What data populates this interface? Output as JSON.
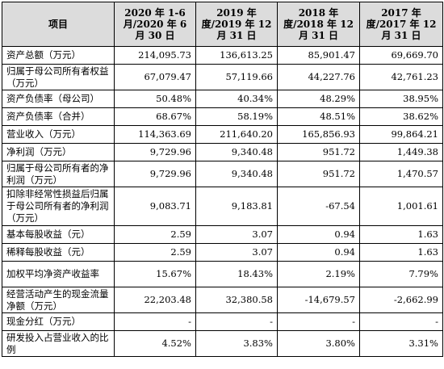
{
  "table": {
    "headers": [
      "项目",
      "2020 年 1-6 月/2020 年 6 月 30 日",
      "2019 年度/2019 年 12 月 31 日",
      "2018 年度/2018 年 12 月 31 日",
      "2017 年度/2017 年 12 月 31 日"
    ],
    "rows": [
      {
        "label": "资产总额（万元）",
        "values": [
          "214,095.73",
          "136,613.25",
          "85,901.47",
          "69,669.70"
        ]
      },
      {
        "label": "归属于母公司所有者权益（万元）",
        "values": [
          "67,079.47",
          "57,119.66",
          "44,227.76",
          "42,761.23"
        ]
      },
      {
        "label": "资产负债率（母公司）",
        "values": [
          "50.48%",
          "40.34%",
          "48.29%",
          "38.95%"
        ]
      },
      {
        "label": "资产负债率（合并）",
        "values": [
          "68.67%",
          "58.19%",
          "48.51%",
          "38.62%"
        ]
      },
      {
        "label": "营业收入（万元）",
        "values": [
          "114,363.69",
          "211,640.20",
          "165,856.93",
          "99,864.21"
        ]
      },
      {
        "label": "净利润（万元）",
        "values": [
          "9,729.96",
          "9,340.48",
          "951.72",
          "1,449.38"
        ]
      },
      {
        "label": "归属于母公司所有者的净利润（万元）",
        "values": [
          "9,729.96",
          "9,340.48",
          "951.72",
          "1,470.57"
        ]
      },
      {
        "label": "扣除非经常性损益后归属于母公司所有者的净利润（万元）",
        "values": [
          "9,083.71",
          "9,183.81",
          "-67.54",
          "1,001.61"
        ]
      },
      {
        "label": "基本每股收益（元）",
        "values": [
          "2.59",
          "3.07",
          "0.94",
          "1.63"
        ]
      },
      {
        "label": "稀释每股收益（元）",
        "values": [
          "2.59",
          "3.07",
          "0.94",
          "1.63"
        ]
      },
      {
        "label": "加权平均净资产收益率",
        "values": [
          "15.67%",
          "18.43%",
          "2.19%",
          "7.79%"
        ]
      },
      {
        "label": "经营活动产生的现金流量净额（万元）",
        "values": [
          "22,203.48",
          "32,380.58",
          "-14,679.57",
          "-2,662.99"
        ]
      },
      {
        "label": "现金分红（万元）",
        "values": [
          "-",
          "-",
          "-",
          "-"
        ]
      },
      {
        "label": "研发投入占营业收入的比例",
        "values": [
          "4.52%",
          "3.83%",
          "3.80%",
          "3.31%"
        ]
      }
    ]
  }
}
